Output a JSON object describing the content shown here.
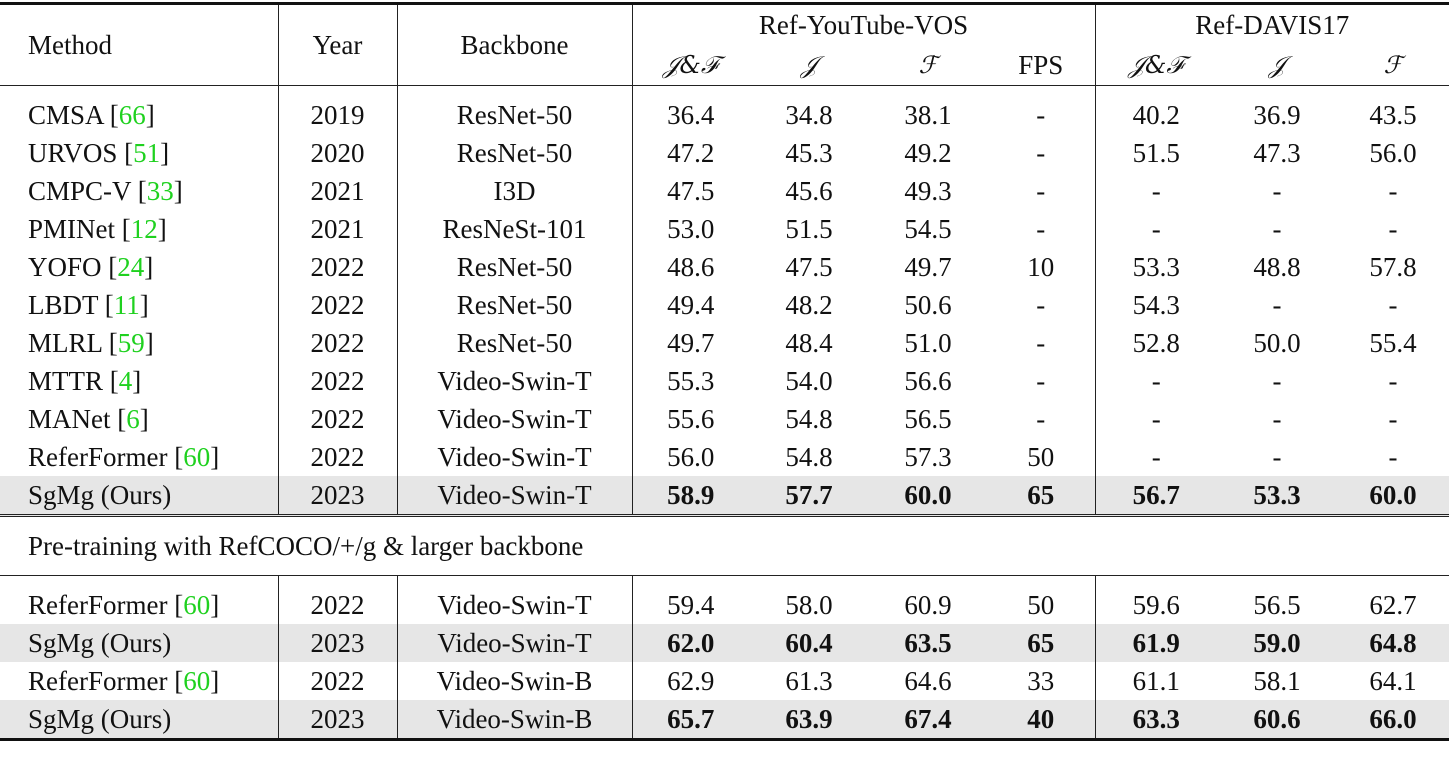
{
  "header": {
    "method": "Method",
    "year": "Year",
    "backbone": "Backbone",
    "group1": "Ref-YouTube-VOS",
    "group2": "Ref-DAVIS17",
    "sub": [
      "𝒥&ℱ",
      "𝒥",
      "ℱ",
      "FPS",
      "𝒥&ℱ",
      "𝒥",
      "ℱ"
    ]
  },
  "section1": [
    {
      "method": "CMSA",
      "cite": "66",
      "year": "2019",
      "backbone": "ResNet-50",
      "vals": [
        "36.4",
        "34.8",
        "38.1",
        "-",
        "40.2",
        "36.9",
        "43.5"
      ]
    },
    {
      "method": "URVOS",
      "cite": "51",
      "year": "2020",
      "backbone": "ResNet-50",
      "vals": [
        "47.2",
        "45.3",
        "49.2",
        "-",
        "51.5",
        "47.3",
        "56.0"
      ]
    },
    {
      "method": "CMPC-V",
      "cite": "33",
      "year": "2021",
      "backbone": "I3D",
      "vals": [
        "47.5",
        "45.6",
        "49.3",
        "-",
        "-",
        "-",
        "-"
      ]
    },
    {
      "method": "PMINet",
      "cite": "12",
      "year": "2021",
      "backbone": "ResNeSt-101",
      "vals": [
        "53.0",
        "51.5",
        "54.5",
        "-",
        "-",
        "-",
        "-"
      ]
    },
    {
      "method": "YOFO",
      "cite": "24",
      "year": "2022",
      "backbone": "ResNet-50",
      "vals": [
        "48.6",
        "47.5",
        "49.7",
        "10",
        "53.3",
        "48.8",
        "57.8"
      ]
    },
    {
      "method": "LBDT",
      "cite": "11",
      "year": "2022",
      "backbone": "ResNet-50",
      "vals": [
        "49.4",
        "48.2",
        "50.6",
        "-",
        "54.3",
        "-",
        "-"
      ]
    },
    {
      "method": "MLRL",
      "cite": "59",
      "year": "2022",
      "backbone": "ResNet-50",
      "vals": [
        "49.7",
        "48.4",
        "51.0",
        "-",
        "52.8",
        "50.0",
        "55.4"
      ]
    },
    {
      "method": "MTTR",
      "cite": "4",
      "year": "2022",
      "backbone": "Video-Swin-T",
      "vals": [
        "55.3",
        "54.0",
        "56.6",
        "-",
        "-",
        "-",
        "-"
      ]
    },
    {
      "method": "MANet",
      "cite": "6",
      "year": "2022",
      "backbone": "Video-Swin-T",
      "vals": [
        "55.6",
        "54.8",
        "56.5",
        "-",
        "-",
        "-",
        "-"
      ]
    },
    {
      "method": "ReferFormer",
      "cite": "60",
      "year": "2022",
      "backbone": "Video-Swin-T",
      "vals": [
        "56.0",
        "54.8",
        "57.3",
        "50",
        "-",
        "-",
        "-"
      ]
    },
    {
      "method": "SgMg (Ours)",
      "year": "2023",
      "backbone": "Video-Swin-T",
      "vals": [
        "58.9",
        "57.7",
        "60.0",
        "65",
        "56.7",
        "53.3",
        "60.0"
      ],
      "highlight": true
    }
  ],
  "section2_title": "Pre-training with RefCOCO/+/g & larger backbone",
  "section2": [
    {
      "method": "ReferFormer",
      "cite": "60",
      "year": "2022",
      "backbone": "Video-Swin-T",
      "vals": [
        "59.4",
        "58.0",
        "60.9",
        "50",
        "59.6",
        "56.5",
        "62.7"
      ]
    },
    {
      "method": "SgMg (Ours)",
      "year": "2023",
      "backbone": "Video-Swin-T",
      "vals": [
        "62.0",
        "60.4",
        "63.5",
        "65",
        "61.9",
        "59.0",
        "64.8"
      ],
      "highlight": true
    },
    {
      "method": "ReferFormer",
      "cite": "60",
      "year": "2022",
      "backbone": "Video-Swin-B",
      "vals": [
        "62.9",
        "61.3",
        "64.6",
        "33",
        "61.1",
        "58.1",
        "64.1"
      ]
    },
    {
      "method": "SgMg (Ours)",
      "year": "2023",
      "backbone": "Video-Swin-B",
      "vals": [
        "65.7",
        "63.9",
        "67.4",
        "40",
        "63.3",
        "60.6",
        "66.0"
      ],
      "highlight": true
    }
  ],
  "colors": {
    "citation": "#1fd11f",
    "highlight_row": "#e6e6e6"
  }
}
